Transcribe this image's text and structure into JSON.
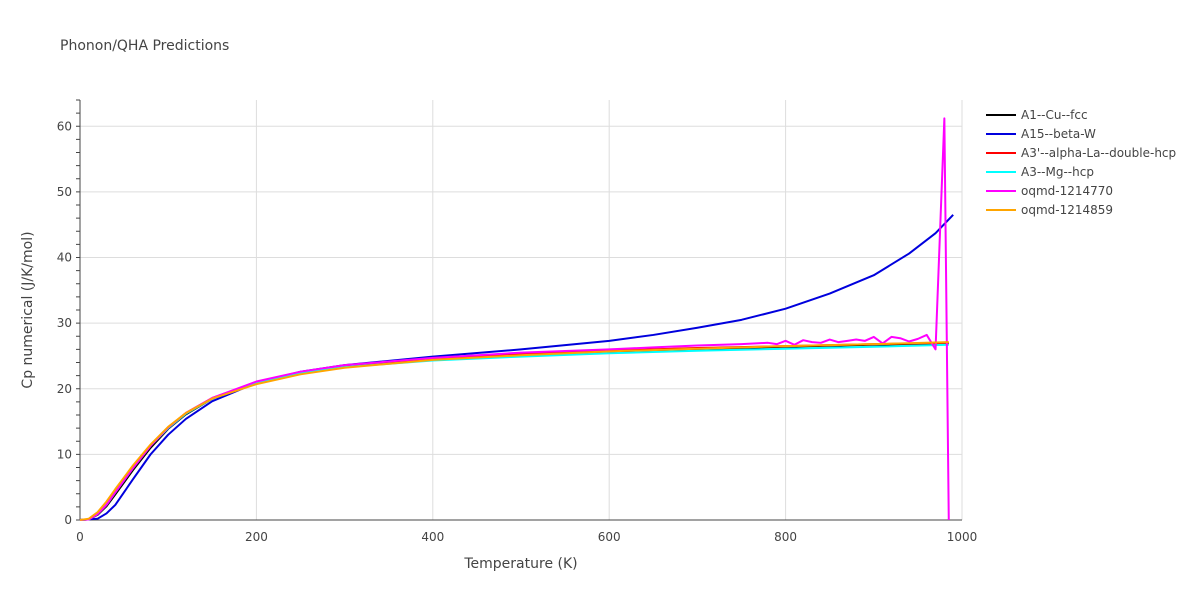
{
  "chart_data": {
    "type": "line",
    "title": "Phonon/QHA Predictions",
    "xlabel": "Temperature (K)",
    "ylabel": "Cp numerical (J/K/mol)",
    "xlim": [
      0,
      1000
    ],
    "ylim": [
      0,
      64
    ],
    "xticks": [
      0,
      200,
      400,
      600,
      800,
      1000
    ],
    "yticks": [
      0,
      10,
      20,
      30,
      40,
      50,
      60
    ],
    "grid": true,
    "legend_position": "top-right",
    "series": [
      {
        "name": "A1--Cu--fcc",
        "color": "#000000",
        "points": [
          [
            0,
            0
          ],
          [
            10,
            0.1
          ],
          [
            20,
            0.8
          ],
          [
            30,
            2.1
          ],
          [
            40,
            3.9
          ],
          [
            60,
            7.6
          ],
          [
            80,
            11.0
          ],
          [
            100,
            13.9
          ],
          [
            120,
            16.1
          ],
          [
            150,
            18.5
          ],
          [
            200,
            21.0
          ],
          [
            250,
            22.5
          ],
          [
            300,
            23.4
          ],
          [
            400,
            24.5
          ],
          [
            500,
            25.1
          ],
          [
            600,
            25.6
          ],
          [
            700,
            26.0
          ],
          [
            800,
            26.4
          ],
          [
            900,
            26.7
          ],
          [
            985,
            26.9
          ]
        ]
      },
      {
        "name": "A15--beta-W",
        "color": "#0000dd",
        "points": [
          [
            0,
            0
          ],
          [
            20,
            0.2
          ],
          [
            30,
            1.0
          ],
          [
            40,
            2.3
          ],
          [
            60,
            6.2
          ],
          [
            80,
            10.0
          ],
          [
            100,
            13.0
          ],
          [
            120,
            15.4
          ],
          [
            150,
            18.1
          ],
          [
            200,
            20.9
          ],
          [
            250,
            22.6
          ],
          [
            300,
            23.6
          ],
          [
            400,
            24.9
          ],
          [
            500,
            26.0
          ],
          [
            600,
            27.3
          ],
          [
            650,
            28.2
          ],
          [
            700,
            29.3
          ],
          [
            750,
            30.5
          ],
          [
            800,
            32.2
          ],
          [
            850,
            34.5
          ],
          [
            900,
            37.3
          ],
          [
            940,
            40.6
          ],
          [
            970,
            43.7
          ],
          [
            990,
            46.5
          ]
        ]
      },
      {
        "name": "A3'--alpha-La--double-hcp",
        "color": "#ff0000",
        "points": [
          [
            0,
            0
          ],
          [
            10,
            0.1
          ],
          [
            20,
            0.9
          ],
          [
            30,
            2.3
          ],
          [
            40,
            4.2
          ],
          [
            60,
            7.9
          ],
          [
            80,
            11.3
          ],
          [
            100,
            14.1
          ],
          [
            120,
            16.3
          ],
          [
            150,
            18.6
          ],
          [
            200,
            21.0
          ],
          [
            250,
            22.5
          ],
          [
            300,
            23.5
          ],
          [
            400,
            24.6
          ],
          [
            500,
            25.3
          ],
          [
            600,
            25.8
          ],
          [
            700,
            26.2
          ],
          [
            800,
            26.5
          ],
          [
            900,
            26.8
          ],
          [
            985,
            27.0
          ]
        ]
      },
      {
        "name": "A3--Mg--hcp",
        "color": "#00ffff",
        "points": [
          [
            0,
            0
          ],
          [
            10,
            0.1
          ],
          [
            20,
            0.9
          ],
          [
            30,
            2.3
          ],
          [
            40,
            4.2
          ],
          [
            60,
            7.9
          ],
          [
            80,
            11.3
          ],
          [
            100,
            14.0
          ],
          [
            120,
            16.2
          ],
          [
            150,
            18.5
          ],
          [
            200,
            20.9
          ],
          [
            250,
            22.4
          ],
          [
            300,
            23.3
          ],
          [
            400,
            24.3
          ],
          [
            500,
            24.9
          ],
          [
            600,
            25.4
          ],
          [
            700,
            25.8
          ],
          [
            800,
            26.1
          ],
          [
            900,
            26.4
          ],
          [
            985,
            26.7
          ]
        ]
      },
      {
        "name": "oqmd-1214770",
        "color": "#ff00ff",
        "points": [
          [
            0,
            0
          ],
          [
            10,
            0.1
          ],
          [
            20,
            0.9
          ],
          [
            30,
            2.3
          ],
          [
            40,
            4.2
          ],
          [
            60,
            7.9
          ],
          [
            80,
            11.3
          ],
          [
            100,
            14.1
          ],
          [
            120,
            16.3
          ],
          [
            150,
            18.6
          ],
          [
            200,
            21.1
          ],
          [
            250,
            22.6
          ],
          [
            300,
            23.6
          ],
          [
            400,
            24.7
          ],
          [
            500,
            25.5
          ],
          [
            600,
            26.0
          ],
          [
            650,
            26.3
          ],
          [
            700,
            26.6
          ],
          [
            750,
            26.8
          ],
          [
            780,
            27.0
          ],
          [
            790,
            26.8
          ],
          [
            800,
            27.3
          ],
          [
            810,
            26.7
          ],
          [
            820,
            27.4
          ],
          [
            830,
            27.1
          ],
          [
            840,
            27.0
          ],
          [
            850,
            27.5
          ],
          [
            860,
            27.1
          ],
          [
            870,
            27.3
          ],
          [
            880,
            27.5
          ],
          [
            890,
            27.3
          ],
          [
            900,
            27.9
          ],
          [
            910,
            26.9
          ],
          [
            920,
            27.9
          ],
          [
            930,
            27.7
          ],
          [
            940,
            27.2
          ],
          [
            950,
            27.6
          ],
          [
            960,
            28.2
          ],
          [
            970,
            26.0
          ],
          [
            980,
            61.2
          ],
          [
            985,
            0
          ]
        ]
      },
      {
        "name": "oqmd-1214859",
        "color": "#ffa500",
        "points": [
          [
            0,
            0
          ],
          [
            10,
            0.2
          ],
          [
            20,
            1.2
          ],
          [
            30,
            2.8
          ],
          [
            40,
            4.7
          ],
          [
            60,
            8.3
          ],
          [
            80,
            11.5
          ],
          [
            100,
            14.2
          ],
          [
            120,
            16.3
          ],
          [
            150,
            18.5
          ],
          [
            200,
            20.7
          ],
          [
            250,
            22.2
          ],
          [
            300,
            23.2
          ],
          [
            400,
            24.4
          ],
          [
            500,
            25.1
          ],
          [
            600,
            25.7
          ],
          [
            700,
            26.1
          ],
          [
            800,
            26.5
          ],
          [
            900,
            26.8
          ],
          [
            985,
            27.1
          ]
        ]
      }
    ]
  }
}
